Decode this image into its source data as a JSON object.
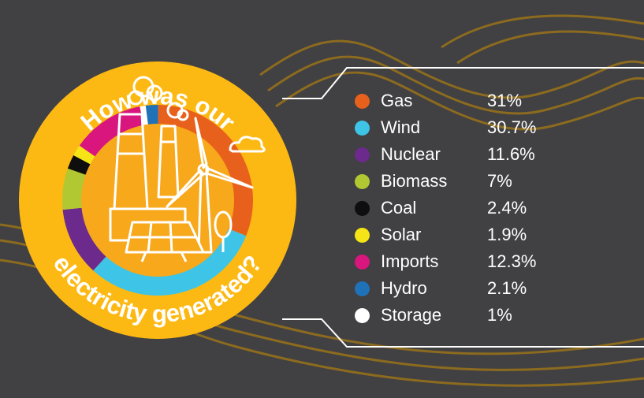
{
  "chart_data": {
    "type": "pie",
    "title_top": "How was our",
    "title_bottom": "electricity generated?",
    "categories": [
      "Gas",
      "Wind",
      "Nuclear",
      "Biomass",
      "Coal",
      "Solar",
      "Imports",
      "Hydro",
      "Storage"
    ],
    "values": [
      "31%",
      "30.7%",
      "11.6%",
      "7%",
      "2.4%",
      "1.9%",
      "12.3%",
      "2.1%",
      "1%"
    ],
    "numeric_values": [
      31,
      30.7,
      11.6,
      7,
      2.4,
      1.9,
      12.3,
      2.1,
      1
    ],
    "colors": [
      "#E8611C",
      "#3EC4E6",
      "#6C2A8C",
      "#B2C832",
      "#0E0E0E",
      "#F5E416",
      "#D9157E",
      "#1F71B8",
      "#FFFFFF"
    ],
    "legend_position": "right"
  },
  "colors": {
    "background": "#414042",
    "badge": "#FDB913",
    "wave_lines": "#8C6B1F",
    "text": "#FFFFFF"
  },
  "icons": [
    "power-station-icon",
    "wind-turbine-icon",
    "solar-panel-icon",
    "tree-icon",
    "cloud-icon"
  ]
}
